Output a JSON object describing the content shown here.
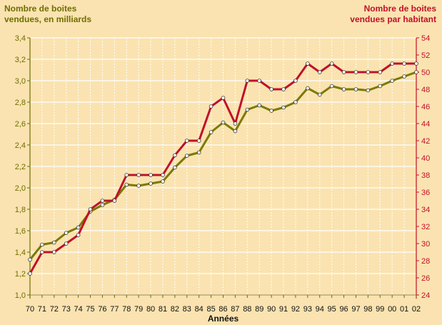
{
  "chart_data": {
    "type": "line",
    "left_axis_title": [
      "Nombre de boites",
      "vendues, en milliards"
    ],
    "right_axis_title": [
      "Nombre de boites",
      "vendues par habitant"
    ],
    "xlabel": "Années",
    "categories": [
      "70",
      "71",
      "72",
      "73",
      "74",
      "75",
      "76",
      "77",
      "78",
      "79",
      "80",
      "81",
      "82",
      "83",
      "84",
      "85",
      "86",
      "87",
      "88",
      "89",
      "90",
      "91",
      "92",
      "93",
      "94",
      "95",
      "96",
      "97",
      "98",
      "99",
      "00",
      "01",
      "02"
    ],
    "left_ylim": [
      1.0,
      3.4
    ],
    "left_ticks": [
      "1,0",
      "1,2",
      "1,4",
      "1,6",
      "1,8",
      "2,0",
      "2,2",
      "2,4",
      "2,6",
      "2,8",
      "3,0",
      "3,2",
      "3,4"
    ],
    "right_ylim": [
      24,
      54
    ],
    "right_ticks": [
      "24",
      "26",
      "28",
      "30",
      "32",
      "34",
      "36",
      "38",
      "40",
      "42",
      "44",
      "46",
      "48",
      "50",
      "52",
      "54"
    ],
    "grid": true,
    "series": [
      {
        "axis": "left",
        "color": "#7a7a00",
        "values": [
          1.33,
          1.47,
          1.49,
          1.58,
          1.63,
          1.78,
          1.84,
          1.89,
          2.03,
          2.02,
          2.04,
          2.06,
          2.19,
          2.3,
          2.33,
          2.52,
          2.61,
          2.53,
          2.73,
          2.77,
          2.72,
          2.75,
          2.8,
          2.93,
          2.87,
          2.95,
          2.92,
          2.92,
          2.91,
          2.95,
          3.0,
          3.04,
          3.08
        ]
      },
      {
        "axis": "right",
        "color": "#c0102a",
        "values": [
          26.5,
          29,
          29,
          30,
          31,
          34,
          35,
          35,
          38,
          38,
          38,
          38,
          40.3,
          42,
          42,
          46,
          47,
          44,
          49,
          49,
          48,
          48,
          49,
          51,
          50,
          51,
          50,
          50,
          50,
          50,
          51,
          51,
          51
        ]
      }
    ]
  },
  "colors": {
    "background": "#fae3b0",
    "grid": "#ffffff",
    "left_axis": "#6e6e00",
    "right_axis": "#c0102a",
    "marker_fill": "#ffffff"
  }
}
